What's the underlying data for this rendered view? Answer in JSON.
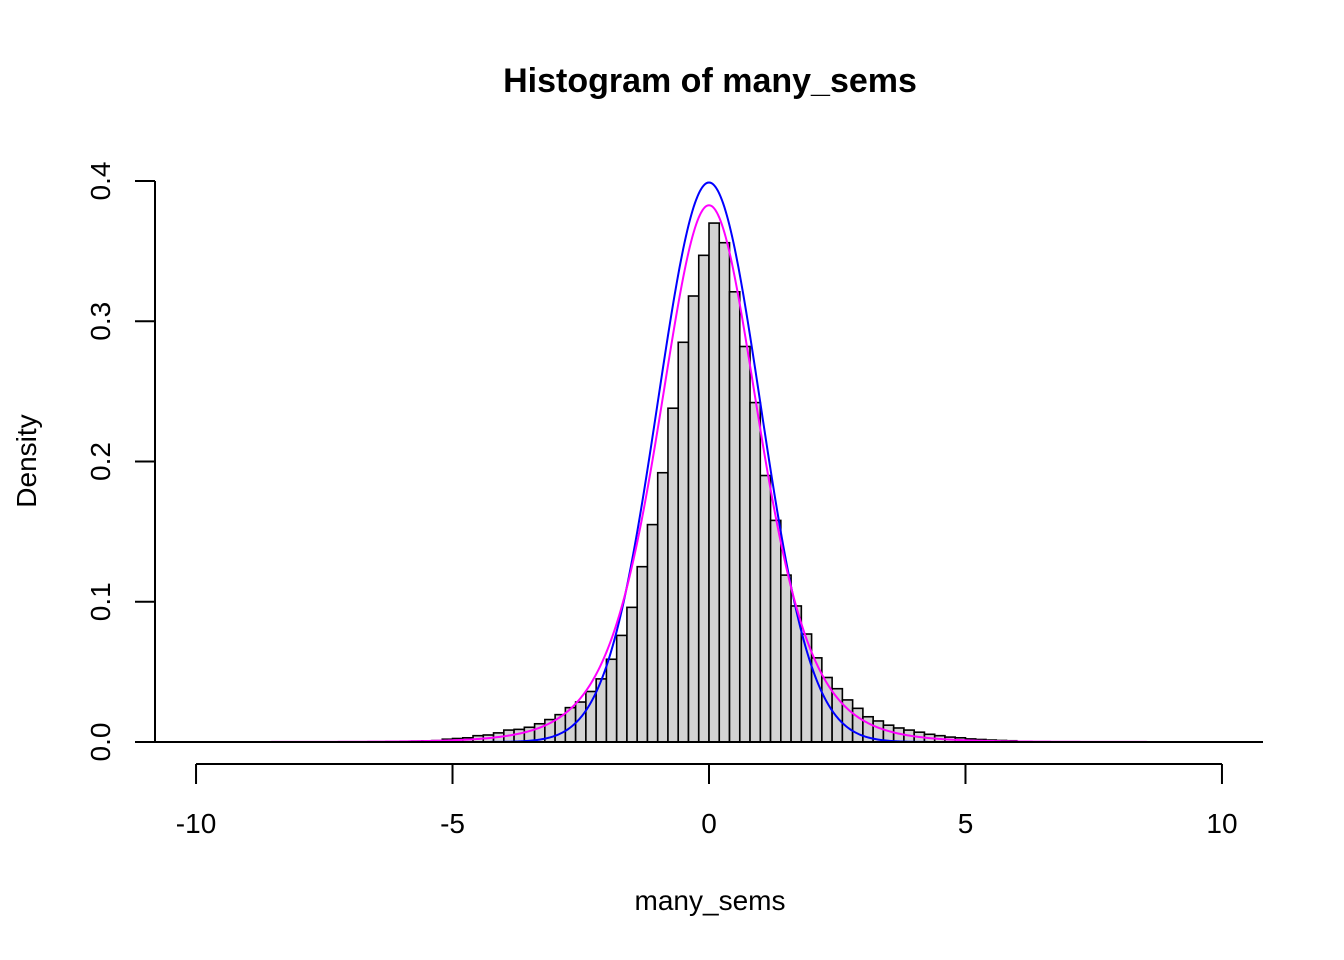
{
  "chart_data": {
    "type": "bar",
    "title": "Histogram of many_sems",
    "xlabel": "many_sems",
    "ylabel": "Density",
    "xlim": [
      -10.8,
      10.8
    ],
    "ylim": [
      0,
      0.4
    ],
    "x_ticks": [
      "-10",
      "-5",
      "0",
      "5",
      "10"
    ],
    "y_ticks": [
      "0.0",
      "0.1",
      "0.2",
      "0.3",
      "0.4"
    ],
    "bin_width": 0.2,
    "bins": [
      {
        "x0": -6.0,
        "density": 0.0005
      },
      {
        "x0": -5.8,
        "density": 0.0006
      },
      {
        "x0": -5.6,
        "density": 0.0008
      },
      {
        "x0": -5.4,
        "density": 0.001
      },
      {
        "x0": -5.2,
        "density": 0.002
      },
      {
        "x0": -5.0,
        "density": 0.0025
      },
      {
        "x0": -4.8,
        "density": 0.003
      },
      {
        "x0": -4.6,
        "density": 0.0045
      },
      {
        "x0": -4.4,
        "density": 0.005
      },
      {
        "x0": -4.2,
        "density": 0.0065
      },
      {
        "x0": -4.0,
        "density": 0.0085
      },
      {
        "x0": -3.8,
        "density": 0.009
      },
      {
        "x0": -3.6,
        "density": 0.0105
      },
      {
        "x0": -3.4,
        "density": 0.013
      },
      {
        "x0": -3.2,
        "density": 0.016
      },
      {
        "x0": -3.0,
        "density": 0.0195
      },
      {
        "x0": -2.8,
        "density": 0.0245
      },
      {
        "x0": -2.6,
        "density": 0.0285
      },
      {
        "x0": -2.4,
        "density": 0.036
      },
      {
        "x0": -2.2,
        "density": 0.045
      },
      {
        "x0": -2.0,
        "density": 0.059
      },
      {
        "x0": -1.8,
        "density": 0.076
      },
      {
        "x0": -1.6,
        "density": 0.096
      },
      {
        "x0": -1.4,
        "density": 0.125
      },
      {
        "x0": -1.2,
        "density": 0.155
      },
      {
        "x0": -1.0,
        "density": 0.192
      },
      {
        "x0": -0.8,
        "density": 0.238
      },
      {
        "x0": -0.6,
        "density": 0.285
      },
      {
        "x0": -0.4,
        "density": 0.318
      },
      {
        "x0": -0.2,
        "density": 0.347
      },
      {
        "x0": 0.0,
        "density": 0.37
      },
      {
        "x0": 0.2,
        "density": 0.356
      },
      {
        "x0": 0.4,
        "density": 0.321
      },
      {
        "x0": 0.6,
        "density": 0.282
      },
      {
        "x0": 0.8,
        "density": 0.242
      },
      {
        "x0": 1.0,
        "density": 0.19
      },
      {
        "x0": 1.2,
        "density": 0.158
      },
      {
        "x0": 1.4,
        "density": 0.119
      },
      {
        "x0": 1.6,
        "density": 0.097
      },
      {
        "x0": 1.8,
        "density": 0.077
      },
      {
        "x0": 2.0,
        "density": 0.06
      },
      {
        "x0": 2.2,
        "density": 0.046
      },
      {
        "x0": 2.4,
        "density": 0.038
      },
      {
        "x0": 2.6,
        "density": 0.03
      },
      {
        "x0": 2.8,
        "density": 0.024
      },
      {
        "x0": 3.0,
        "density": 0.018
      },
      {
        "x0": 3.2,
        "density": 0.015
      },
      {
        "x0": 3.4,
        "density": 0.012
      },
      {
        "x0": 3.6,
        "density": 0.01
      },
      {
        "x0": 3.8,
        "density": 0.0085
      },
      {
        "x0": 4.0,
        "density": 0.007
      },
      {
        "x0": 4.2,
        "density": 0.0055
      },
      {
        "x0": 4.4,
        "density": 0.0045
      },
      {
        "x0": 4.6,
        "density": 0.0035
      },
      {
        "x0": 4.8,
        "density": 0.003
      },
      {
        "x0": 5.0,
        "density": 0.0022
      },
      {
        "x0": 5.2,
        "density": 0.0018
      },
      {
        "x0": 5.4,
        "density": 0.0014
      },
      {
        "x0": 5.6,
        "density": 0.0011
      },
      {
        "x0": 5.8,
        "density": 0.0009
      }
    ],
    "curves": [
      {
        "kind": "normal",
        "mean": 0,
        "sd": 1,
        "x_from": -10,
        "x_to": 10,
        "color": "#0000ff"
      },
      {
        "kind": "t",
        "df": 6,
        "x_from": -10,
        "x_to": 10,
        "color": "#ff00ff"
      }
    ],
    "bar_fill": "#d3d3d3",
    "grid": false
  }
}
